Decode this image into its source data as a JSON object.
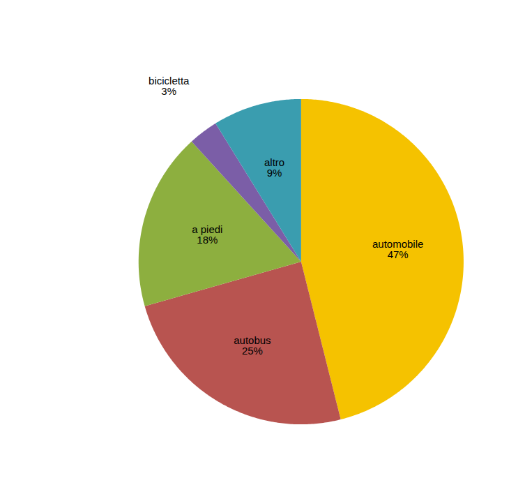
{
  "chart_data": {
    "type": "pie",
    "categories": [
      "automobile",
      "autobus",
      "a piedi",
      "bicicletta",
      "altro"
    ],
    "values": [
      47,
      25,
      18,
      3,
      9
    ],
    "value_labels": [
      "47%",
      "25%",
      "18%",
      "3%",
      "9%"
    ],
    "colors": [
      "#F5C200",
      "#B85450",
      "#8DAF3F",
      "#7B5EA7",
      "#3A9DAF"
    ],
    "data_labels": true
  }
}
